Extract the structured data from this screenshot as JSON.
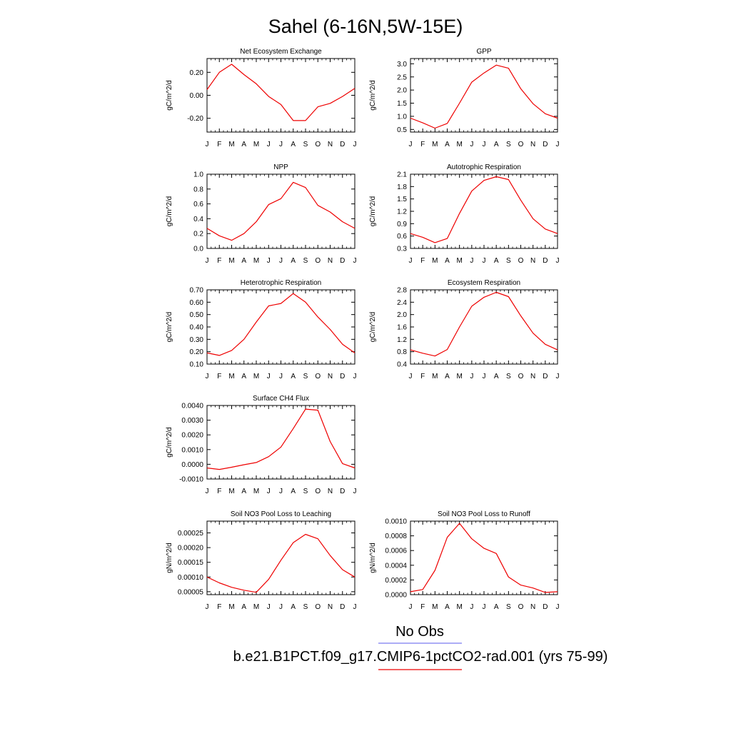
{
  "page": {
    "title": "Sahel (6-16N,5W-15E)",
    "legend": {
      "obs_label": "No Obs",
      "model_label": "b.e21.B1PCT.f09_g17.CMIP6-1pctCO2-rad.001 (yrs 75-99)",
      "obs_color": "#7b7bf0",
      "model_color": "#ee0000"
    },
    "line_color": "#ee0000"
  },
  "chart_data": [
    {
      "type": "line",
      "title": "Net Ecosystem Exchange",
      "ylabel": "gC/m^2/d",
      "x": [
        "J",
        "F",
        "M",
        "A",
        "M",
        "J",
        "J",
        "A",
        "S",
        "O",
        "N",
        "D",
        "J"
      ],
      "ylim": [
        -0.32,
        0.32
      ],
      "yticks": [
        -0.2,
        0.0,
        0.2
      ],
      "ytick_labels": [
        "-0.20",
        "0.00",
        "0.20"
      ],
      "values": [
        0.05,
        0.2,
        0.27,
        0.18,
        0.1,
        -0.01,
        -0.08,
        -0.22,
        -0.22,
        -0.1,
        -0.07,
        -0.01,
        0.06
      ]
    },
    {
      "type": "line",
      "title": "GPP",
      "ylabel": "gC/m^2/d",
      "x": [
        "J",
        "F",
        "M",
        "A",
        "M",
        "J",
        "J",
        "A",
        "S",
        "O",
        "N",
        "D",
        "J"
      ],
      "ylim": [
        0.4,
        3.2
      ],
      "yticks": [
        0.5,
        1.0,
        1.5,
        2.0,
        2.5,
        3.0
      ],
      "ytick_labels": [
        "0.5",
        "1.0",
        "1.5",
        "2.0",
        "2.5",
        "3.0"
      ],
      "values": [
        0.93,
        0.75,
        0.55,
        0.73,
        1.5,
        2.3,
        2.65,
        2.95,
        2.83,
        2.05,
        1.48,
        1.1,
        0.93
      ]
    },
    {
      "type": "line",
      "title": "NPP",
      "ylabel": "gC/m^2/d",
      "x": [
        "J",
        "F",
        "M",
        "A",
        "M",
        "J",
        "J",
        "A",
        "S",
        "O",
        "N",
        "D",
        "J"
      ],
      "ylim": [
        0.0,
        1.0
      ],
      "yticks": [
        0.0,
        0.2,
        0.4,
        0.6,
        0.8,
        1.0
      ],
      "ytick_labels": [
        "0.0",
        "0.2",
        "0.4",
        "0.6",
        "0.8",
        "1.0"
      ],
      "values": [
        0.27,
        0.17,
        0.11,
        0.2,
        0.36,
        0.59,
        0.67,
        0.89,
        0.82,
        0.58,
        0.49,
        0.36,
        0.27
      ]
    },
    {
      "type": "line",
      "title": "Autotrophic Respiration",
      "ylabel": "gC/m^2/d",
      "x": [
        "J",
        "F",
        "M",
        "A",
        "M",
        "J",
        "J",
        "A",
        "S",
        "O",
        "N",
        "D",
        "J"
      ],
      "ylim": [
        0.3,
        2.1
      ],
      "yticks": [
        0.3,
        0.6,
        0.9,
        1.2,
        1.5,
        1.8,
        2.1
      ],
      "ytick_labels": [
        "0.3",
        "0.6",
        "0.9",
        "1.2",
        "1.5",
        "1.8",
        "2.1"
      ],
      "values": [
        0.66,
        0.57,
        0.44,
        0.54,
        1.15,
        1.69,
        1.95,
        2.04,
        1.97,
        1.47,
        1.02,
        0.77,
        0.66
      ]
    },
    {
      "type": "line",
      "title": "Heterotrophic Respiration",
      "ylabel": "gC/m^2/d",
      "x": [
        "J",
        "F",
        "M",
        "A",
        "M",
        "J",
        "J",
        "A",
        "S",
        "O",
        "N",
        "D",
        "J"
      ],
      "ylim": [
        0.1,
        0.7
      ],
      "yticks": [
        0.1,
        0.2,
        0.3,
        0.4,
        0.5,
        0.6,
        0.7
      ],
      "ytick_labels": [
        "0.10",
        "0.20",
        "0.30",
        "0.40",
        "0.50",
        "0.60",
        "0.70"
      ],
      "values": [
        0.19,
        0.17,
        0.21,
        0.3,
        0.44,
        0.57,
        0.59,
        0.67,
        0.6,
        0.48,
        0.38,
        0.26,
        0.19
      ]
    },
    {
      "type": "line",
      "title": "Ecosystem Respiration",
      "ylabel": "gC/m^2/d",
      "x": [
        "J",
        "F",
        "M",
        "A",
        "M",
        "J",
        "J",
        "A",
        "S",
        "O",
        "N",
        "D",
        "J"
      ],
      "ylim": [
        0.4,
        2.8
      ],
      "yticks": [
        0.4,
        0.8,
        1.2,
        1.6,
        2.0,
        2.4,
        2.8
      ],
      "ytick_labels": [
        "0.4",
        "0.8",
        "1.2",
        "1.6",
        "2.0",
        "2.4",
        "2.8"
      ],
      "values": [
        0.86,
        0.75,
        0.66,
        0.87,
        1.6,
        2.27,
        2.56,
        2.72,
        2.58,
        1.96,
        1.4,
        1.04,
        0.86
      ]
    },
    {
      "type": "line",
      "title": "Surface CH4 Flux",
      "ylabel": "gC/m^2/d",
      "x": [
        "J",
        "F",
        "M",
        "A",
        "M",
        "J",
        "J",
        "A",
        "S",
        "O",
        "N",
        "D",
        "J"
      ],
      "ylim": [
        -0.001,
        0.004
      ],
      "yticks": [
        -0.001,
        0.0,
        0.001,
        0.002,
        0.003,
        0.004
      ],
      "ytick_labels": [
        "-0.0010",
        "0.0000",
        "0.0010",
        "0.0020",
        "0.0030",
        "0.0040"
      ],
      "values": [
        -0.00025,
        -0.00035,
        -0.0002,
        -3e-05,
        0.00012,
        0.00052,
        0.00117,
        0.00243,
        0.00375,
        0.00368,
        0.00155,
        5e-05,
        -0.00025
      ]
    },
    {
      "type": "line",
      "title": "Soil NO3 Pool Loss to Leaching",
      "ylabel": "gN/m^2/d",
      "x": [
        "J",
        "F",
        "M",
        "A",
        "M",
        "J",
        "J",
        "A",
        "S",
        "O",
        "N",
        "D",
        "J"
      ],
      "ylim": [
        4e-05,
        0.00029
      ],
      "yticks": [
        5e-05,
        0.0001,
        0.00015,
        0.0002,
        0.00025
      ],
      "ytick_labels": [
        "0.00005",
        "0.00010",
        "0.00015",
        "0.00020",
        "0.00025"
      ],
      "values": [
        0.0001,
        8e-05,
        6.5e-05,
        5.5e-05,
        4.8e-05,
        9.2e-05,
        0.000157,
        0.000217,
        0.000245,
        0.00023,
        0.000173,
        0.000125,
        0.0001
      ]
    },
    {
      "type": "line",
      "title": "Soil NO3 Pool Loss to Runoff",
      "ylabel": "gN/m^2/d",
      "x": [
        "J",
        "F",
        "M",
        "A",
        "M",
        "J",
        "J",
        "A",
        "S",
        "O",
        "N",
        "D",
        "J"
      ],
      "ylim": [
        0.0,
        0.001
      ],
      "yticks": [
        0.0,
        0.0002,
        0.0004,
        0.0006,
        0.0008,
        0.001
      ],
      "ytick_labels": [
        "0.0000",
        "0.0002",
        "0.0004",
        "0.0006",
        "0.0008",
        "0.0010"
      ],
      "values": [
        4e-05,
        7e-05,
        0.00033,
        0.00078,
        0.00097,
        0.00076,
        0.00063,
        0.00056,
        0.00024,
        0.00013,
        9e-05,
        3e-05,
        4e-05
      ]
    }
  ]
}
